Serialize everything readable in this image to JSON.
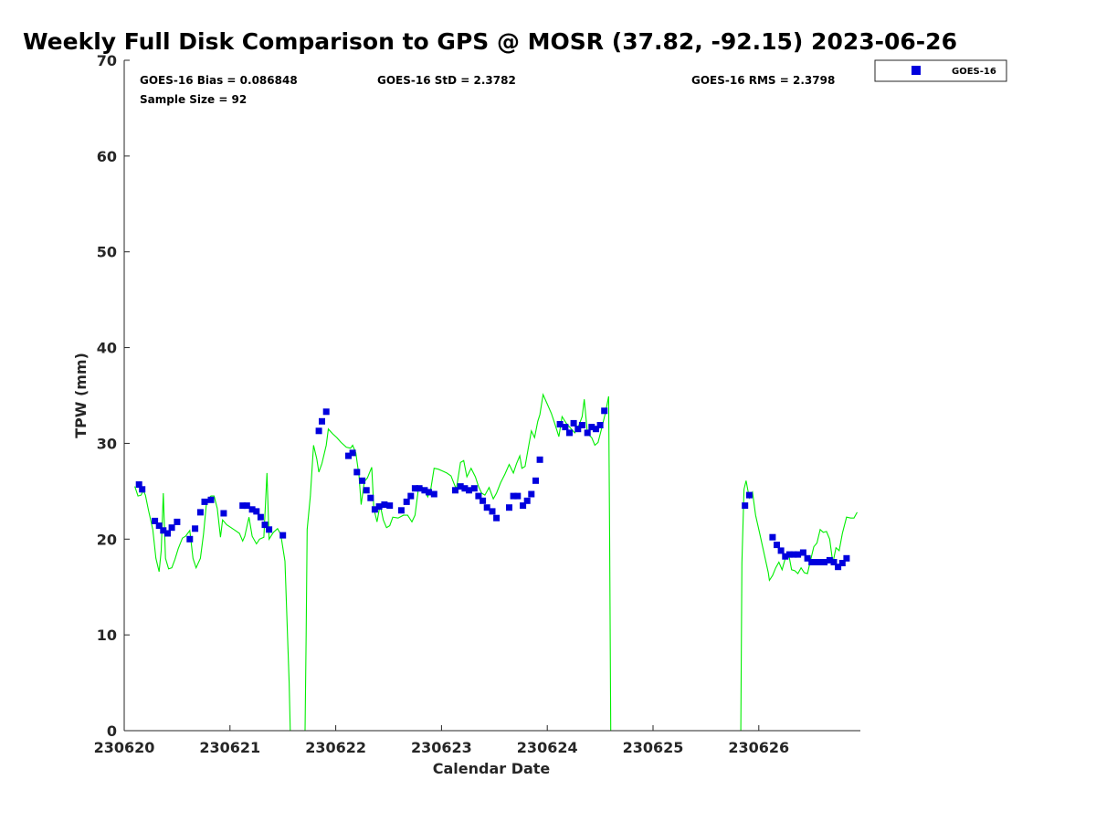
{
  "chart_data": {
    "type": "scatter",
    "title": "Weekly Full Disk Comparison to GPS @ MOSR (37.82, -92.15) 2023-06-26",
    "xlabel": "Calendar Date",
    "ylabel": "TPW (mm)",
    "x_ticks": [
      "230620",
      "230621",
      "230622",
      "230623",
      "230624",
      "230625",
      "230626"
    ],
    "xlim_days": [
      0,
      6.95
    ],
    "ylim": [
      0,
      70
    ],
    "y_ticks": [
      0,
      10,
      20,
      30,
      40,
      50,
      60,
      70
    ],
    "legend_position": "outside-top-right",
    "stats": {
      "bias": "GOES-16 Bias = 0.086848",
      "std": "GOES-16 StD = 2.3782",
      "rms": "GOES-16 RMS = 2.3798",
      "sample": "Sample Size = 92"
    },
    "series": [
      {
        "name": "GOES-16",
        "marker": "square",
        "color": "#0000dd",
        "points": [
          [
            0.14,
            25.7
          ],
          [
            0.17,
            25.2
          ],
          [
            0.29,
            21.9
          ],
          [
            0.33,
            21.4
          ],
          [
            0.37,
            20.9
          ],
          [
            0.41,
            20.6
          ],
          [
            0.45,
            21.2
          ],
          [
            0.5,
            21.8
          ],
          [
            0.62,
            20.0
          ],
          [
            0.67,
            21.1
          ],
          [
            0.72,
            22.8
          ],
          [
            0.76,
            23.9
          ],
          [
            0.82,
            24.1
          ],
          [
            0.94,
            22.7
          ],
          [
            1.12,
            23.5
          ],
          [
            1.16,
            23.5
          ],
          [
            1.21,
            23.1
          ],
          [
            1.25,
            22.9
          ],
          [
            1.29,
            22.3
          ],
          [
            1.33,
            21.5
          ],
          [
            1.37,
            21.0
          ],
          [
            1.5,
            20.4
          ],
          [
            1.84,
            31.3
          ],
          [
            1.87,
            32.3
          ],
          [
            1.91,
            33.3
          ],
          [
            2.12,
            28.7
          ],
          [
            2.16,
            29.0
          ],
          [
            2.2,
            27.0
          ],
          [
            2.25,
            26.1
          ],
          [
            2.29,
            25.1
          ],
          [
            2.33,
            24.3
          ],
          [
            2.37,
            23.1
          ],
          [
            2.41,
            23.4
          ],
          [
            2.46,
            23.6
          ],
          [
            2.51,
            23.5
          ],
          [
            2.62,
            23.0
          ],
          [
            2.67,
            23.9
          ],
          [
            2.71,
            24.5
          ],
          [
            2.75,
            25.3
          ],
          [
            2.79,
            25.3
          ],
          [
            2.84,
            25.1
          ],
          [
            2.88,
            24.9
          ],
          [
            2.93,
            24.7
          ],
          [
            3.13,
            25.1
          ],
          [
            3.18,
            25.5
          ],
          [
            3.22,
            25.3
          ],
          [
            3.26,
            25.1
          ],
          [
            3.31,
            25.3
          ],
          [
            3.35,
            24.5
          ],
          [
            3.39,
            24.0
          ],
          [
            3.43,
            23.3
          ],
          [
            3.48,
            22.9
          ],
          [
            3.52,
            22.2
          ],
          [
            3.64,
            23.3
          ],
          [
            3.68,
            24.5
          ],
          [
            3.72,
            24.5
          ],
          [
            3.77,
            23.5
          ],
          [
            3.81,
            24.0
          ],
          [
            3.85,
            24.7
          ],
          [
            3.89,
            26.1
          ],
          [
            3.93,
            28.3
          ],
          [
            4.12,
            32.0
          ],
          [
            4.17,
            31.7
          ],
          [
            4.21,
            31.1
          ],
          [
            4.25,
            32.1
          ],
          [
            4.29,
            31.5
          ],
          [
            4.33,
            31.9
          ],
          [
            4.38,
            31.1
          ],
          [
            4.42,
            31.7
          ],
          [
            4.46,
            31.5
          ],
          [
            4.5,
            31.9
          ],
          [
            4.54,
            33.4
          ],
          [
            5.87,
            23.5
          ],
          [
            5.91,
            24.6
          ],
          [
            6.13,
            20.2
          ],
          [
            6.17,
            19.4
          ],
          [
            6.21,
            18.8
          ],
          [
            6.25,
            18.2
          ],
          [
            6.29,
            18.4
          ],
          [
            6.33,
            18.4
          ],
          [
            6.37,
            18.4
          ],
          [
            6.42,
            18.6
          ],
          [
            6.46,
            18.0
          ],
          [
            6.5,
            17.6
          ],
          [
            6.54,
            17.6
          ],
          [
            6.58,
            17.6
          ],
          [
            6.62,
            17.6
          ],
          [
            6.67,
            17.8
          ],
          [
            6.71,
            17.6
          ],
          [
            6.75,
            17.1
          ],
          [
            6.79,
            17.5
          ],
          [
            6.83,
            18.0
          ]
        ]
      },
      {
        "name": "GPS",
        "style": "line",
        "color": "#00ee00",
        "points": [
          [
            0.1,
            25.5
          ],
          [
            0.13,
            24.5
          ],
          [
            0.16,
            24.6
          ],
          [
            0.18,
            25.1
          ],
          [
            0.2,
            24.6
          ],
          [
            0.23,
            23.0
          ],
          [
            0.27,
            21.0
          ],
          [
            0.3,
            18.0
          ],
          [
            0.33,
            16.6
          ],
          [
            0.35,
            18.8
          ],
          [
            0.37,
            24.8
          ],
          [
            0.39,
            18.0
          ],
          [
            0.42,
            16.9
          ],
          [
            0.45,
            17.0
          ],
          [
            0.48,
            17.9
          ],
          [
            0.51,
            19.0
          ],
          [
            0.55,
            20.1
          ],
          [
            0.58,
            20.3
          ],
          [
            0.62,
            20.9
          ],
          [
            0.65,
            18.0
          ],
          [
            0.68,
            17.0
          ],
          [
            0.72,
            18.0
          ],
          [
            0.75,
            20.5
          ],
          [
            0.78,
            24.0
          ],
          [
            0.82,
            24.5
          ],
          [
            0.85,
            24.5
          ],
          [
            0.88,
            23.2
          ],
          [
            0.91,
            20.2
          ],
          [
            0.93,
            22.0
          ],
          [
            0.97,
            21.5
          ],
          [
            1.01,
            21.2
          ],
          [
            1.05,
            20.9
          ],
          [
            1.09,
            20.6
          ],
          [
            1.12,
            19.8
          ],
          [
            1.14,
            20.3
          ],
          [
            1.18,
            22.3
          ],
          [
            1.21,
            20.3
          ],
          [
            1.25,
            19.5
          ],
          [
            1.28,
            20.0
          ],
          [
            1.32,
            20.2
          ],
          [
            1.35,
            26.9
          ],
          [
            1.37,
            20.0
          ],
          [
            1.41,
            20.7
          ],
          [
            1.45,
            21.1
          ],
          [
            1.48,
            20.5
          ],
          [
            1.52,
            17.7
          ],
          [
            1.56,
            5.0
          ],
          [
            1.57,
            0.0
          ],
          [
            1.71,
            0.0
          ],
          [
            1.72,
            10.0
          ],
          [
            1.73,
            21.0
          ],
          [
            1.76,
            24.5
          ],
          [
            1.79,
            29.8
          ],
          [
            1.82,
            28.4
          ],
          [
            1.84,
            27.0
          ],
          [
            1.87,
            27.9
          ],
          [
            1.91,
            29.8
          ],
          [
            1.93,
            31.5
          ],
          [
            1.97,
            31.0
          ],
          [
            2.01,
            30.6
          ],
          [
            2.05,
            30.1
          ],
          [
            2.1,
            29.6
          ],
          [
            2.14,
            29.5
          ],
          [
            2.16,
            29.8
          ],
          [
            2.19,
            29.0
          ],
          [
            2.22,
            26.6
          ],
          [
            2.24,
            23.6
          ],
          [
            2.27,
            26.0
          ],
          [
            2.3,
            26.4
          ],
          [
            2.34,
            27.5
          ],
          [
            2.36,
            23.2
          ],
          [
            2.39,
            21.8
          ],
          [
            2.42,
            23.6
          ],
          [
            2.45,
            22.0
          ],
          [
            2.48,
            21.2
          ],
          [
            2.51,
            21.4
          ],
          [
            2.54,
            22.3
          ],
          [
            2.59,
            22.2
          ],
          [
            2.64,
            22.5
          ],
          [
            2.68,
            22.5
          ],
          [
            2.72,
            21.8
          ],
          [
            2.75,
            22.5
          ],
          [
            2.78,
            25.1
          ],
          [
            2.81,
            25.5
          ],
          [
            2.84,
            25.2
          ],
          [
            2.87,
            24.4
          ],
          [
            2.9,
            25.3
          ],
          [
            2.93,
            27.4
          ],
          [
            2.97,
            27.3
          ],
          [
            3.01,
            27.1
          ],
          [
            3.05,
            26.9
          ],
          [
            3.09,
            26.6
          ],
          [
            3.14,
            25.2
          ],
          [
            3.18,
            28.0
          ],
          [
            3.21,
            28.2
          ],
          [
            3.24,
            26.5
          ],
          [
            3.28,
            27.4
          ],
          [
            3.32,
            26.5
          ],
          [
            3.35,
            25.5
          ],
          [
            3.38,
            24.8
          ],
          [
            3.41,
            24.6
          ],
          [
            3.45,
            25.4
          ],
          [
            3.49,
            24.2
          ],
          [
            3.52,
            24.8
          ],
          [
            3.56,
            25.9
          ],
          [
            3.6,
            26.8
          ],
          [
            3.64,
            27.8
          ],
          [
            3.68,
            26.9
          ],
          [
            3.71,
            27.9
          ],
          [
            3.74,
            28.7
          ],
          [
            3.76,
            27.4
          ],
          [
            3.79,
            27.6
          ],
          [
            3.82,
            29.5
          ],
          [
            3.85,
            31.3
          ],
          [
            3.88,
            30.6
          ],
          [
            3.91,
            32.3
          ],
          [
            3.93,
            33.0
          ],
          [
            3.96,
            35.1
          ],
          [
            4.0,
            34.1
          ],
          [
            4.04,
            33.1
          ],
          [
            4.07,
            32.1
          ],
          [
            4.11,
            30.7
          ],
          [
            4.14,
            32.8
          ],
          [
            4.18,
            32.1
          ],
          [
            4.22,
            31.6
          ],
          [
            4.26,
            31.1
          ],
          [
            4.3,
            31.9
          ],
          [
            4.33,
            32.8
          ],
          [
            4.35,
            34.6
          ],
          [
            4.38,
            31.0
          ],
          [
            4.42,
            30.6
          ],
          [
            4.45,
            29.8
          ],
          [
            4.48,
            30.1
          ],
          [
            4.51,
            31.4
          ],
          [
            4.55,
            33.2
          ],
          [
            4.58,
            34.9
          ],
          [
            4.59,
            20.0
          ],
          [
            4.6,
            0.0
          ],
          [
            5.83,
            0.0
          ],
          [
            5.84,
            17.5
          ],
          [
            5.86,
            25.2
          ],
          [
            5.88,
            26.1
          ],
          [
            5.91,
            24.3
          ],
          [
            5.94,
            24.9
          ],
          [
            5.97,
            22.5
          ],
          [
            6.01,
            20.5
          ],
          [
            6.05,
            18.5
          ],
          [
            6.09,
            16.5
          ],
          [
            6.1,
            15.7
          ],
          [
            6.13,
            16.2
          ],
          [
            6.16,
            17.0
          ],
          [
            6.19,
            17.6
          ],
          [
            6.22,
            16.8
          ],
          [
            6.25,
            18.0
          ],
          [
            6.28,
            18.6
          ],
          [
            6.31,
            16.8
          ],
          [
            6.34,
            16.7
          ],
          [
            6.37,
            16.4
          ],
          [
            6.4,
            17.0
          ],
          [
            6.43,
            16.5
          ],
          [
            6.46,
            16.4
          ],
          [
            6.49,
            17.8
          ],
          [
            6.52,
            19.2
          ],
          [
            6.55,
            19.6
          ],
          [
            6.58,
            21.0
          ],
          [
            6.61,
            20.7
          ],
          [
            6.64,
            20.8
          ],
          [
            6.67,
            20.0
          ],
          [
            6.7,
            17.5
          ],
          [
            6.73,
            19.1
          ],
          [
            6.76,
            18.8
          ],
          [
            6.79,
            20.6
          ],
          [
            6.83,
            22.3
          ],
          [
            6.87,
            22.2
          ],
          [
            6.9,
            22.2
          ],
          [
            6.93,
            22.8
          ]
        ]
      }
    ]
  }
}
